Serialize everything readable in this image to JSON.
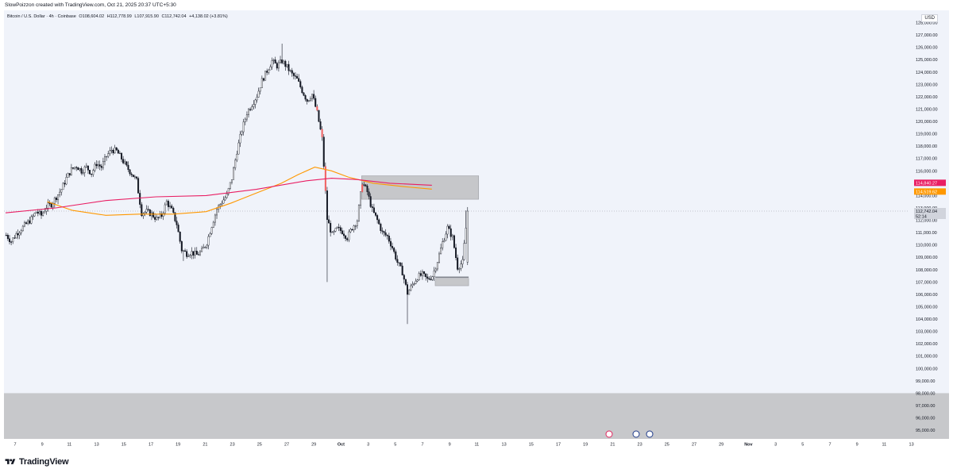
{
  "header": {
    "attribution": "SlowPoizzon created with TradingView.com, Oct 21, 2025 20:37 UTC+5:30"
  },
  "legend": {
    "symbol": "Bitcoin / U.S. Dollar · 4h · Coinbase",
    "open": "O108,604.02",
    "high": "H112,778.99",
    "low": "L107,915.90",
    "close": "C112,742.04",
    "change": "+4,138.02 (+3.81%)"
  },
  "currency": "USD",
  "footer": {
    "brand": "TradingView"
  },
  "colors": {
    "bull": "#131722",
    "bear": "#131722",
    "ma_long": "#e91e63",
    "ma_short": "#ff9800",
    "zone": "#c4c5c8",
    "highlight": "#f06060"
  },
  "price_tags": [
    {
      "label": "114,840.27",
      "value": 114840.27,
      "color": "#e91e63"
    },
    {
      "label": "114,519.62",
      "value": 114519.62,
      "color": "#ff9800"
    },
    {
      "label": "112,742.04",
      "sub": "52:14",
      "value": 112742.04,
      "color": "#d1d4dc"
    }
  ],
  "chart_data": {
    "type": "candlestick",
    "x_tick_labels": [
      "7",
      "9",
      "11",
      "13",
      "15",
      "17",
      "19",
      "21",
      "23",
      "25",
      "27",
      "29",
      "Oct",
      "3",
      "5",
      "7",
      "9",
      "11",
      "13",
      "15",
      "17",
      "19",
      "21",
      "23",
      "25",
      "27",
      "29",
      "Nov",
      "3",
      "5",
      "7",
      "9",
      "11",
      "13"
    ],
    "y_tick_labels": [
      "95,000.00",
      "96,000.00",
      "97,000.00",
      "98,000.00",
      "99,000.00",
      "100,000.00",
      "101,000.00",
      "102,000.00",
      "103,000.00",
      "104,000.00",
      "105,000.00",
      "106,000.00",
      "107,000.00",
      "108,000.00",
      "109,000.00",
      "110,000.00",
      "111,000.00",
      "112,000.00",
      "113,000.00",
      "114,000.00",
      "115,000.00",
      "116,000.00",
      "117,000.00",
      "118,000.00",
      "119,000.00",
      "120,000.00",
      "121,000.00",
      "122,000.00",
      "123,000.00",
      "124,000.00",
      "125,000.00",
      "126,000.00",
      "127,000.00",
      "128,000.00"
    ],
    "y_ticks": [
      95000,
      96000,
      97000,
      98000,
      99000,
      100000,
      101000,
      102000,
      103000,
      104000,
      105000,
      106000,
      107000,
      108000,
      109000,
      110000,
      111000,
      112000,
      113000,
      114000,
      115000,
      116000,
      117000,
      118000,
      119000,
      120000,
      121000,
      122000,
      123000,
      124000,
      125000,
      126000,
      127000,
      128000
    ],
    "ylim": [
      94300,
      129000
    ],
    "last_price": 112742.04,
    "close_path": [
      [
        0,
        110800
      ],
      [
        3,
        110300
      ],
      [
        6,
        110900
      ],
      [
        9,
        111300
      ],
      [
        12,
        111700
      ],
      [
        15,
        112100
      ],
      [
        18,
        112700
      ],
      [
        21,
        112400
      ],
      [
        24,
        113100
      ],
      [
        27,
        113300
      ],
      [
        30,
        113900
      ],
      [
        33,
        114500
      ],
      [
        36,
        115400
      ],
      [
        39,
        116100
      ],
      [
        42,
        116400
      ],
      [
        45,
        116000
      ],
      [
        48,
        116300
      ],
      [
        51,
        115800
      ],
      [
        54,
        116600
      ],
      [
        57,
        116300
      ],
      [
        60,
        117200
      ],
      [
        63,
        117700
      ],
      [
        66,
        117600
      ],
      [
        69,
        117000
      ],
      [
        72,
        116300
      ],
      [
        75,
        115800
      ],
      [
        78,
        115200
      ],
      [
        81,
        112600
      ],
      [
        84,
        112700
      ],
      [
        87,
        112500
      ],
      [
        90,
        112100
      ],
      [
        93,
        112400
      ],
      [
        96,
        113500
      ],
      [
        99,
        112800
      ],
      [
        102,
        111700
      ],
      [
        105,
        109600
      ],
      [
        108,
        109300
      ],
      [
        111,
        109400
      ],
      [
        114,
        109200
      ],
      [
        117,
        109500
      ],
      [
        120,
        110200
      ],
      [
        123,
        111600
      ],
      [
        126,
        112900
      ],
      [
        129,
        113500
      ],
      [
        132,
        114000
      ],
      [
        135,
        115400
      ],
      [
        138,
        117600
      ],
      [
        141,
        119300
      ],
      [
        144,
        120700
      ],
      [
        147,
        121400
      ],
      [
        150,
        122100
      ],
      [
        153,
        123300
      ],
      [
        156,
        124100
      ],
      [
        159,
        124900
      ],
      [
        162,
        124500
      ],
      [
        165,
        124900
      ],
      [
        168,
        124400
      ],
      [
        171,
        123800
      ],
      [
        174,
        123400
      ],
      [
        177,
        122500
      ],
      [
        180,
        121700
      ],
      [
        183,
        122200
      ],
      [
        186,
        120700
      ],
      [
        189,
        118600
      ],
      [
        192,
        112100
      ],
      [
        195,
        110800
      ],
      [
        198,
        111300
      ],
      [
        201,
        111100
      ],
      [
        204,
        110600
      ],
      [
        207,
        111400
      ],
      [
        210,
        112000
      ],
      [
        213,
        115100
      ],
      [
        216,
        114300
      ],
      [
        219,
        112800
      ],
      [
        222,
        112000
      ],
      [
        225,
        111000
      ],
      [
        228,
        110700
      ],
      [
        231,
        109800
      ],
      [
        234,
        108600
      ],
      [
        237,
        107800
      ],
      [
        240,
        106100
      ],
      [
        243,
        106800
      ],
      [
        246,
        107400
      ],
      [
        249,
        107600
      ],
      [
        252,
        107200
      ],
      [
        255,
        107500
      ],
      [
        258,
        108700
      ],
      [
        261,
        110200
      ],
      [
        264,
        111400
      ],
      [
        267,
        110600
      ],
      [
        270,
        108200
      ],
      [
        273,
        108600
      ],
      [
        276,
        112742
      ]
    ],
    "ma_long": [
      [
        0,
        112600
      ],
      [
        30,
        113000
      ],
      [
        60,
        113600
      ],
      [
        90,
        113900
      ],
      [
        120,
        114000
      ],
      [
        150,
        114500
      ],
      [
        180,
        115200
      ],
      [
        195,
        115400
      ],
      [
        210,
        115300
      ],
      [
        230,
        115000
      ],
      [
        255,
        114840
      ]
    ],
    "ma_short": [
      [
        25,
        113500
      ],
      [
        40,
        112800
      ],
      [
        60,
        112400
      ],
      [
        80,
        112500
      ],
      [
        100,
        112500
      ],
      [
        120,
        112700
      ],
      [
        135,
        113400
      ],
      [
        150,
        114200
      ],
      [
        165,
        115000
      ],
      [
        175,
        115700
      ],
      [
        185,
        116300
      ],
      [
        195,
        116000
      ],
      [
        205,
        115500
      ],
      [
        220,
        115000
      ],
      [
        240,
        114700
      ],
      [
        255,
        114520
      ]
    ],
    "zones": [
      {
        "from_bar": 213,
        "to_bar": 283,
        "low": 113700,
        "high": 115600
      },
      {
        "from_bar": 257,
        "to_bar": 277,
        "low": 106700,
        "high": 107300
      },
      {
        "from_bar": 0,
        "to_bar": 379,
        "low": 94300,
        "high": 98000
      }
    ]
  }
}
